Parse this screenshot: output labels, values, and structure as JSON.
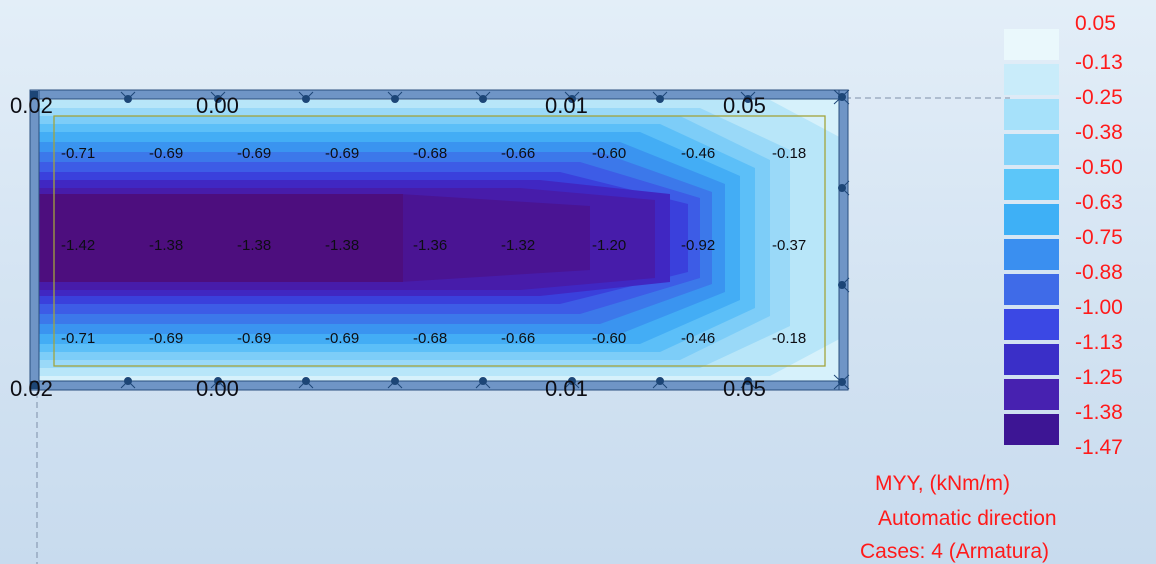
{
  "result": {
    "name": "MYY, (kNm/m)",
    "direction": "Automatic direction",
    "cases": "Cases: 4 (Armatura)"
  },
  "legend": {
    "levels": [
      "0.05",
      "-0.13",
      "-0.25",
      "-0.38",
      "-0.50",
      "-0.63",
      "-0.75",
      "-0.88",
      "-1.00",
      "-1.13",
      "-1.25",
      "-1.38",
      "-1.47"
    ],
    "colors": [
      "#eaf8fc",
      "#c9ecfa",
      "#a6e1fa",
      "#85d4fa",
      "#5cc6f9",
      "#3eb0f6",
      "#3a8ff0",
      "#3f6be8",
      "#3b48e4",
      "#3a2fc8",
      "#4721b0",
      "#3d1594",
      "#4a0f78"
    ],
    "label_color": "#ff1a1a"
  },
  "plate": {
    "edge_values_top": [
      "0.02",
      "0.00",
      "0.01",
      "0.05"
    ],
    "edge_values_bottom": [
      "0.02",
      "0.00",
      "0.01",
      "0.05"
    ],
    "rows": [
      [
        "-0.71",
        "-0.69",
        "-0.69",
        "-0.69",
        "-0.68",
        "-0.66",
        "-0.60",
        "-0.46",
        "-0.18"
      ],
      [
        "-1.42",
        "-1.38",
        "-1.38",
        "-1.38",
        "-1.36",
        "-1.32",
        "-1.20",
        "-0.92",
        "-0.37"
      ],
      [
        "-0.71",
        "-0.69",
        "-0.69",
        "-0.69",
        "-0.68",
        "-0.66",
        "-0.60",
        "-0.46",
        "-0.18"
      ]
    ]
  }
}
